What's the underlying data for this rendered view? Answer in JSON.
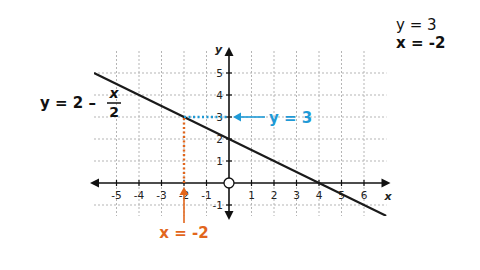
{
  "chart_data": {
    "type": "line",
    "x_label": "x",
    "y_label": "y",
    "xlim": [
      -6,
      7
    ],
    "ylim": [
      -1.5,
      6
    ],
    "xticks": [
      -5,
      -4,
      -3,
      -2,
      -1,
      1,
      2,
      3,
      4,
      5,
      6
    ],
    "yticks": [
      -1,
      1,
      2,
      3,
      4,
      5
    ],
    "grid": true,
    "x": [
      -6,
      7
    ],
    "values": [
      5,
      -1.5
    ],
    "color": "#1a1a1a",
    "equation": {
      "lhs": "y = 2 –",
      "numerator": "x",
      "denominator": "2"
    },
    "guides": [
      {
        "label": "y = 3",
        "color": "#1f9ad6",
        "x": [
          -2,
          0
        ],
        "y": [
          3,
          3
        ]
      },
      {
        "label": "x = -2",
        "color": "#e2661c",
        "x": [
          -2,
          -2
        ],
        "y": [
          0,
          3
        ]
      }
    ],
    "corner_text": [
      "y = 3",
      "x = -2"
    ]
  }
}
